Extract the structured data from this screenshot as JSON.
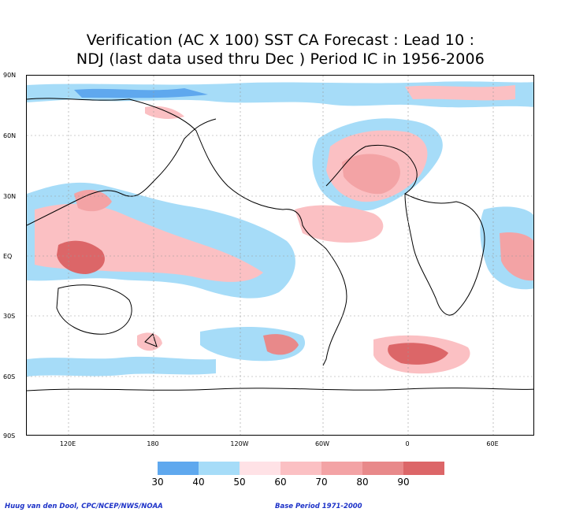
{
  "title": {
    "line1": "Verification (AC X 100) SST CA Forecast : Lead 10 :",
    "line2": "NDJ (last data used thru Dec ) Period IC in 1956-2006"
  },
  "map": {
    "lat_labels": [
      "90N",
      "60N",
      "30N",
      "EQ",
      "30S",
      "60S",
      "90S"
    ],
    "lon_labels": [
      "120E",
      "180",
      "120W",
      "60W",
      "0",
      "60E"
    ],
    "colors": {
      "c30": "#5fa8ee",
      "c40": "#a6dcf8",
      "c50": "#ffe2e6",
      "c60": "#fbc0c3",
      "c70": "#f3a3a5",
      "c80": "#e8898a",
      "c90": "#dc6668"
    }
  },
  "legend": {
    "labels": [
      "30",
      "40",
      "50",
      "60",
      "70",
      "80",
      "90"
    ]
  },
  "credits": {
    "left": "Huug van den Dool, CPC/NCEP/NWS/NOAA",
    "right": "Base Period 1971-2000"
  }
}
